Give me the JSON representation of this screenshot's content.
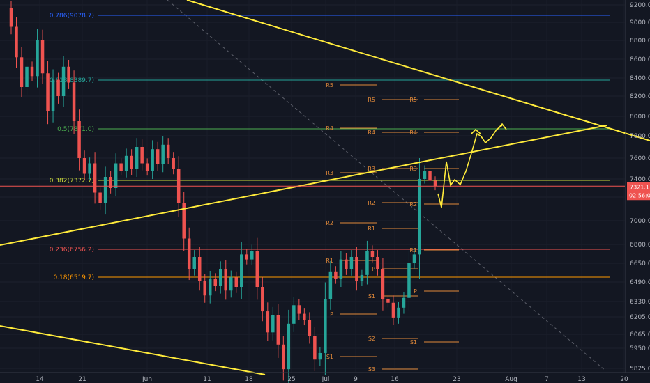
{
  "chart_data": {
    "type": "candlestick",
    "price_axis": {
      "ticks": [
        5825.0,
        5950.0,
        6065.0,
        6205.0,
        6330.0,
        6490.0,
        6650.0,
        6800.0,
        7000.0,
        7200.0,
        7400.0,
        7600.0,
        7800.0,
        8000.0,
        8200.0,
        8400.0,
        8600.0,
        8800.0,
        9000.0,
        9200.0
      ],
      "tick_labels": [
        "5825.0",
        "5950.0",
        "6065.0",
        "6205.0",
        "6330.0",
        "6490.0",
        "6650.0",
        "6800.0",
        "7000.0",
        "7200.0",
        "7400.0",
        "7600.0",
        "7800.0",
        "8000.0",
        "8200.0",
        "8400.0",
        "8600.0",
        "8800.0",
        "9000.0",
        "9200.0"
      ]
    },
    "date_axis": {
      "labels": [
        "14",
        "21",
        "Jun",
        "11",
        "18",
        "25",
        "Jul",
        "9",
        "16",
        "23",
        "Aug",
        "7",
        "13",
        "20"
      ]
    },
    "current_price": {
      "label": "7321.1",
      "countdown": "02:56:01",
      "color": "#ef5350"
    },
    "fib_levels": [
      {
        "label": "0.786(9078.7)",
        "color": "#2962ff"
      },
      {
        "label": "0.618(8389.7)",
        "color": "#26a69a"
      },
      {
        "label": "0.5(7871.0)",
        "color": "#4caf50"
      },
      {
        "label": "0.382(7372.7)",
        "color": "#cddc39"
      },
      {
        "label": "0.236(6756.2)",
        "color": "#ef5350"
      },
      {
        "label": "0.18(6519.7)",
        "color": "#ff9800"
      }
    ],
    "pivot_labels": [
      "R5",
      "R4",
      "R3",
      "R2",
      "R1",
      "P",
      "S1",
      "R5",
      "R4",
      "R3",
      "R2",
      "R1",
      "P",
      "S1",
      "S2",
      "S3",
      "R5",
      "R4",
      "R3",
      "R2",
      "R1",
      "P",
      "S1"
    ],
    "series": [
      {
        "open": 9160,
        "close": 8950
      },
      {
        "open": 8950,
        "close": 8620
      },
      {
        "open": 8620,
        "close": 8300
      },
      {
        "open": 8300,
        "close": 8520
      },
      {
        "open": 8520,
        "close": 8420
      },
      {
        "open": 8420,
        "close": 8800
      },
      {
        "open": 8800,
        "close": 8450
      },
      {
        "open": 8450,
        "close": 8050
      },
      {
        "open": 8050,
        "close": 8380
      },
      {
        "open": 8380,
        "close": 8200
      },
      {
        "open": 8200,
        "close": 8520
      },
      {
        "open": 8520,
        "close": 8350
      },
      {
        "open": 8350,
        "close": 7950
      },
      {
        "open": 7950,
        "close": 7600
      },
      {
        "open": 7600,
        "close": 7450
      },
      {
        "open": 7450,
        "close": 7550
      },
      {
        "open": 7550,
        "close": 7250
      },
      {
        "open": 7250,
        "close": 7150
      },
      {
        "open": 7150,
        "close": 7420
      },
      {
        "open": 7420,
        "close": 7300
      },
      {
        "open": 7300,
        "close": 7550
      },
      {
        "open": 7550,
        "close": 7480
      },
      {
        "open": 7480,
        "close": 7620
      },
      {
        "open": 7620,
        "close": 7500
      },
      {
        "open": 7500,
        "close": 7700
      },
      {
        "open": 7700,
        "close": 7550
      },
      {
        "open": 7550,
        "close": 7480
      },
      {
        "open": 7480,
        "close": 7680
      },
      {
        "open": 7680,
        "close": 7540
      },
      {
        "open": 7540,
        "close": 7720
      },
      {
        "open": 7720,
        "close": 7600
      },
      {
        "open": 7600,
        "close": 7500
      },
      {
        "open": 7500,
        "close": 7150
      },
      {
        "open": 7150,
        "close": 6850
      },
      {
        "open": 6850,
        "close": 6600
      },
      {
        "open": 6600,
        "close": 6700
      },
      {
        "open": 6700,
        "close": 6500
      },
      {
        "open": 6500,
        "close": 6380
      },
      {
        "open": 6380,
        "close": 6520
      },
      {
        "open": 6520,
        "close": 6460
      },
      {
        "open": 6460,
        "close": 6600
      },
      {
        "open": 6600,
        "close": 6420
      },
      {
        "open": 6420,
        "close": 6530
      },
      {
        "open": 6530,
        "close": 6450
      },
      {
        "open": 6450,
        "close": 6720
      },
      {
        "open": 6720,
        "close": 6680
      },
      {
        "open": 6680,
        "close": 6750
      },
      {
        "open": 6750,
        "close": 6450
      },
      {
        "open": 6450,
        "close": 6250
      },
      {
        "open": 6250,
        "close": 6080
      },
      {
        "open": 6080,
        "close": 6220
      },
      {
        "open": 6220,
        "close": 5980
      },
      {
        "open": 5980,
        "close": 5820
      },
      {
        "open": 5820,
        "close": 6150
      },
      {
        "open": 6150,
        "close": 6300
      },
      {
        "open": 6300,
        "close": 6230
      },
      {
        "open": 6230,
        "close": 6180
      },
      {
        "open": 6180,
        "close": 6050
      },
      {
        "open": 6050,
        "close": 5880
      },
      {
        "open": 5880,
        "close": 5920
      },
      {
        "open": 5920,
        "close": 6350
      },
      {
        "open": 6350,
        "close": 6580
      },
      {
        "open": 6580,
        "close": 6520
      },
      {
        "open": 6520,
        "close": 6680
      },
      {
        "open": 6680,
        "close": 6600
      },
      {
        "open": 6600,
        "close": 6700
      },
      {
        "open": 6700,
        "close": 6500
      },
      {
        "open": 6500,
        "close": 6550
      },
      {
        "open": 6550,
        "close": 6750
      },
      {
        "open": 6750,
        "close": 6700
      },
      {
        "open": 6700,
        "close": 6600
      },
      {
        "open": 6600,
        "close": 6350
      },
      {
        "open": 6350,
        "close": 6320
      },
      {
        "open": 6320,
        "close": 6200
      },
      {
        "open": 6200,
        "close": 6280
      },
      {
        "open": 6280,
        "close": 6360
      },
      {
        "open": 6360,
        "close": 6650
      },
      {
        "open": 6650,
        "close": 6720
      },
      {
        "open": 6720,
        "close": 7400
      },
      {
        "open": 7400,
        "close": 7480
      },
      {
        "open": 7480,
        "close": 7380
      },
      {
        "open": 7380,
        "close": 7321
      }
    ]
  }
}
